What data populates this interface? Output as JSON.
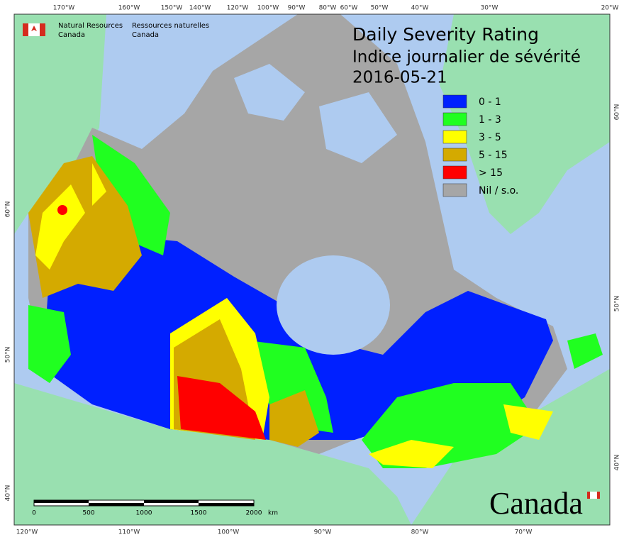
{
  "header": {
    "org_en_1": "Natural Resources",
    "org_en_2": "Canada",
    "org_fr_1": "Ressources naturelles",
    "org_fr_2": "Canada",
    "title_en": "Daily Severity Rating",
    "title_fr": "Indice journalier de sévérité",
    "date": "2016-05-21"
  },
  "legend": {
    "items": [
      {
        "label": "0 - 1",
        "color": "#0020ff"
      },
      {
        "label": "1 - 3",
        "color": "#20ff20"
      },
      {
        "label": "3 - 5",
        "color": "#ffff00"
      },
      {
        "label": "5 - 15",
        "color": "#d4aa00"
      },
      {
        "label": "> 15",
        "color": "#ff0000"
      },
      {
        "label": "Nil / s.o.",
        "color": "#a6a6a6"
      }
    ]
  },
  "graticule": {
    "top": [
      "170°W",
      "160°W",
      "150°W",
      "140°W",
      "120°W",
      "100°W",
      "90°W",
      "80°W",
      "60°W",
      "50°W",
      "40°W",
      "30°W",
      "20°W"
    ],
    "bottom": [
      "120°W",
      "110°W",
      "100°W",
      "90°W",
      "80°W",
      "70°W"
    ],
    "left": [
      "60°N",
      "50°N",
      "40°N"
    ],
    "right": [
      "60°N",
      "50°N",
      "40°N"
    ]
  },
  "scale_bar": {
    "labels": [
      "0",
      "500",
      "1000",
      "1500",
      "2000",
      "km"
    ]
  },
  "wordmark": "Canada"
}
